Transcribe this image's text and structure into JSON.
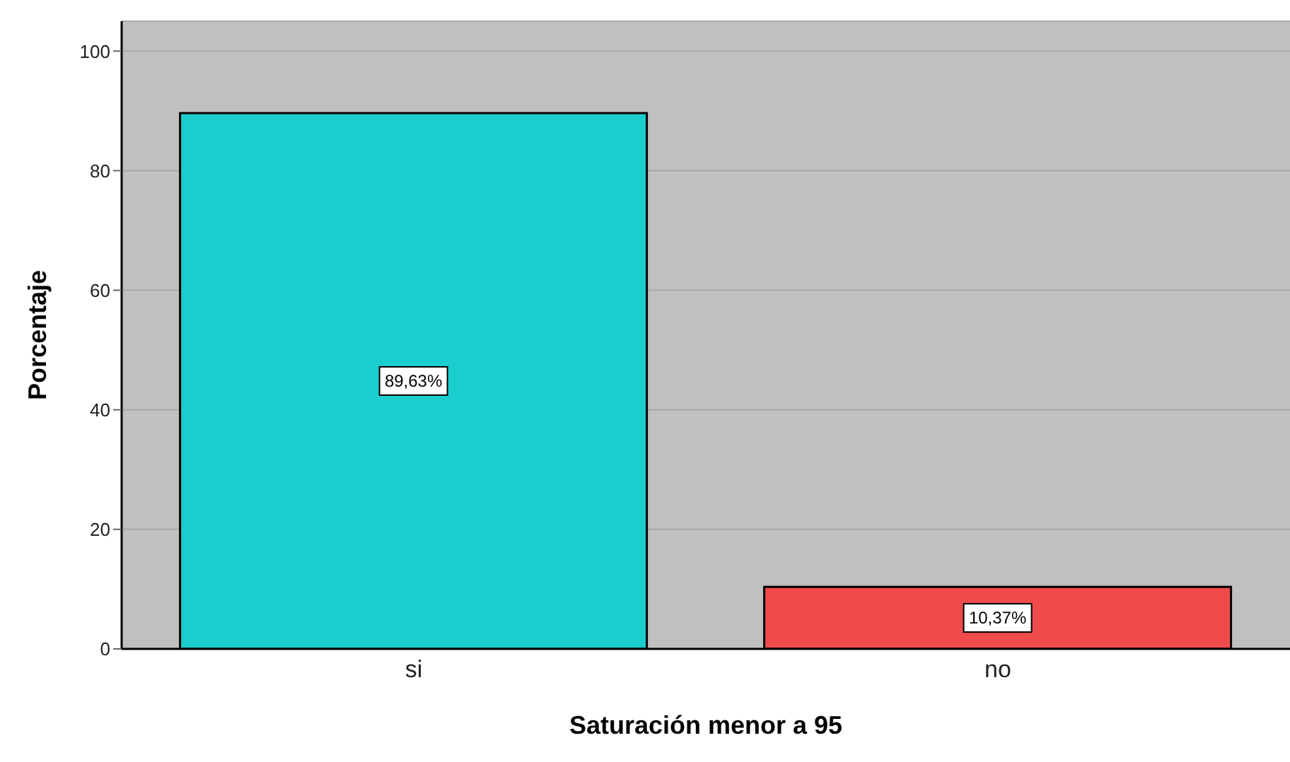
{
  "chart_data": {
    "type": "bar",
    "xlabel": "Saturación menor a 95",
    "ylabel": "Porcentaje",
    "categories": [
      "si",
      "no"
    ],
    "values": [
      89.63,
      10.37
    ],
    "colors": [
      "#1ccdcd",
      "#ef4b4b"
    ],
    "value_labels": [
      "89,63%",
      "10,37%"
    ],
    "ylim": [
      0,
      105
    ],
    "yticks": [
      0,
      20,
      40,
      60,
      80,
      100
    ],
    "grid": "y"
  }
}
